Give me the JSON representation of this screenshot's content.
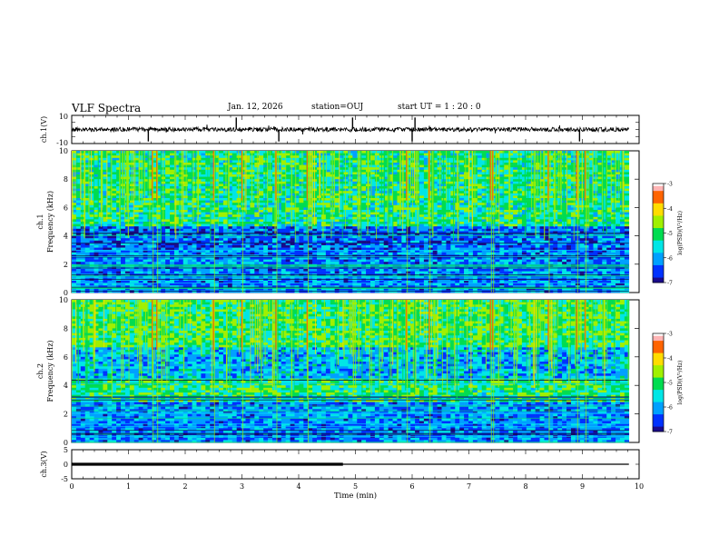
{
  "header": {
    "title": "VLF Spectra",
    "date": "Jan. 12, 2026",
    "station": "station=OUJ",
    "start": "start UT =  1 : 20 : 0"
  },
  "colors": {
    "axis": "#000000",
    "colormap": [
      "#1a0a8c",
      "#0032ff",
      "#00a0ff",
      "#00e6e6",
      "#00dc50",
      "#a0f000",
      "#ffdc00",
      "#ff6400",
      "#dc0000",
      "#ffffff"
    ]
  },
  "chart_data": [
    {
      "type": "line",
      "name": "ch1-waveform",
      "ylabel": "ch.1(V)",
      "yticks": [
        "10",
        "-10"
      ],
      "ylim": [
        -10,
        10
      ],
      "xlim": [
        0,
        10
      ],
      "baseline": 0,
      "data_end_min": 9.82,
      "spikes_min": [
        1.35,
        2.9,
        3.65,
        4.95,
        6.0,
        6.05,
        8.95
      ]
    },
    {
      "type": "heatmap",
      "name": "ch1-spectrogram",
      "ylabel_line1": "ch.1",
      "ylabel_line2": "Frequency (kHz)",
      "yticks": [
        "0",
        "2",
        "4",
        "6",
        "8",
        "10"
      ],
      "ylim": [
        0,
        10
      ],
      "xlim": [
        0,
        10
      ],
      "data_end_min": 9.82,
      "colorbar": {
        "label": "log(PSD)(V²/Hz)",
        "ticks": [
          "-3",
          "-4",
          "-5",
          "-6",
          "-7"
        ],
        "range": [
          -7,
          -3
        ]
      },
      "strong_bursts_min": [
        1.42,
        1.5,
        2.5,
        3.0,
        3.6,
        4.15,
        5.9,
        6.3,
        7.38,
        7.42,
        8.4,
        8.9,
        9.05
      ]
    },
    {
      "type": "heatmap",
      "name": "ch2-spectrogram",
      "ylabel_line1": "ch.2",
      "ylabel_line2": "Frequency (kHz)",
      "yticks": [
        "0",
        "2",
        "4",
        "6",
        "8",
        "10"
      ],
      "ylim": [
        0,
        10
      ],
      "xlim": [
        0,
        10
      ],
      "data_end_min": 9.82,
      "colorbar": {
        "label": "log(PSD)(V²/Hz)",
        "ticks": [
          "-3",
          "-4",
          "-5",
          "-6",
          "-7"
        ],
        "range": [
          -7,
          -3
        ]
      },
      "strong_bursts_min": [
        1.42,
        1.5,
        2.5,
        3.0,
        3.6,
        4.15,
        5.9,
        6.3,
        7.38,
        7.42,
        8.4,
        8.9,
        9.05
      ]
    },
    {
      "type": "line",
      "name": "ch3-trace",
      "ylabel": "ch.3(V)",
      "yticks": [
        "5",
        "0",
        "-5"
      ],
      "ylim": [
        -5,
        5
      ],
      "xlim": [
        0,
        10
      ],
      "xlabel": "Time (min)",
      "xticks": [
        "0",
        "1",
        "2",
        "3",
        "4",
        "5",
        "6",
        "7",
        "8",
        "9",
        "10"
      ],
      "level": 0,
      "thick_until_min": 4.78,
      "data_end_min": 9.82
    }
  ]
}
